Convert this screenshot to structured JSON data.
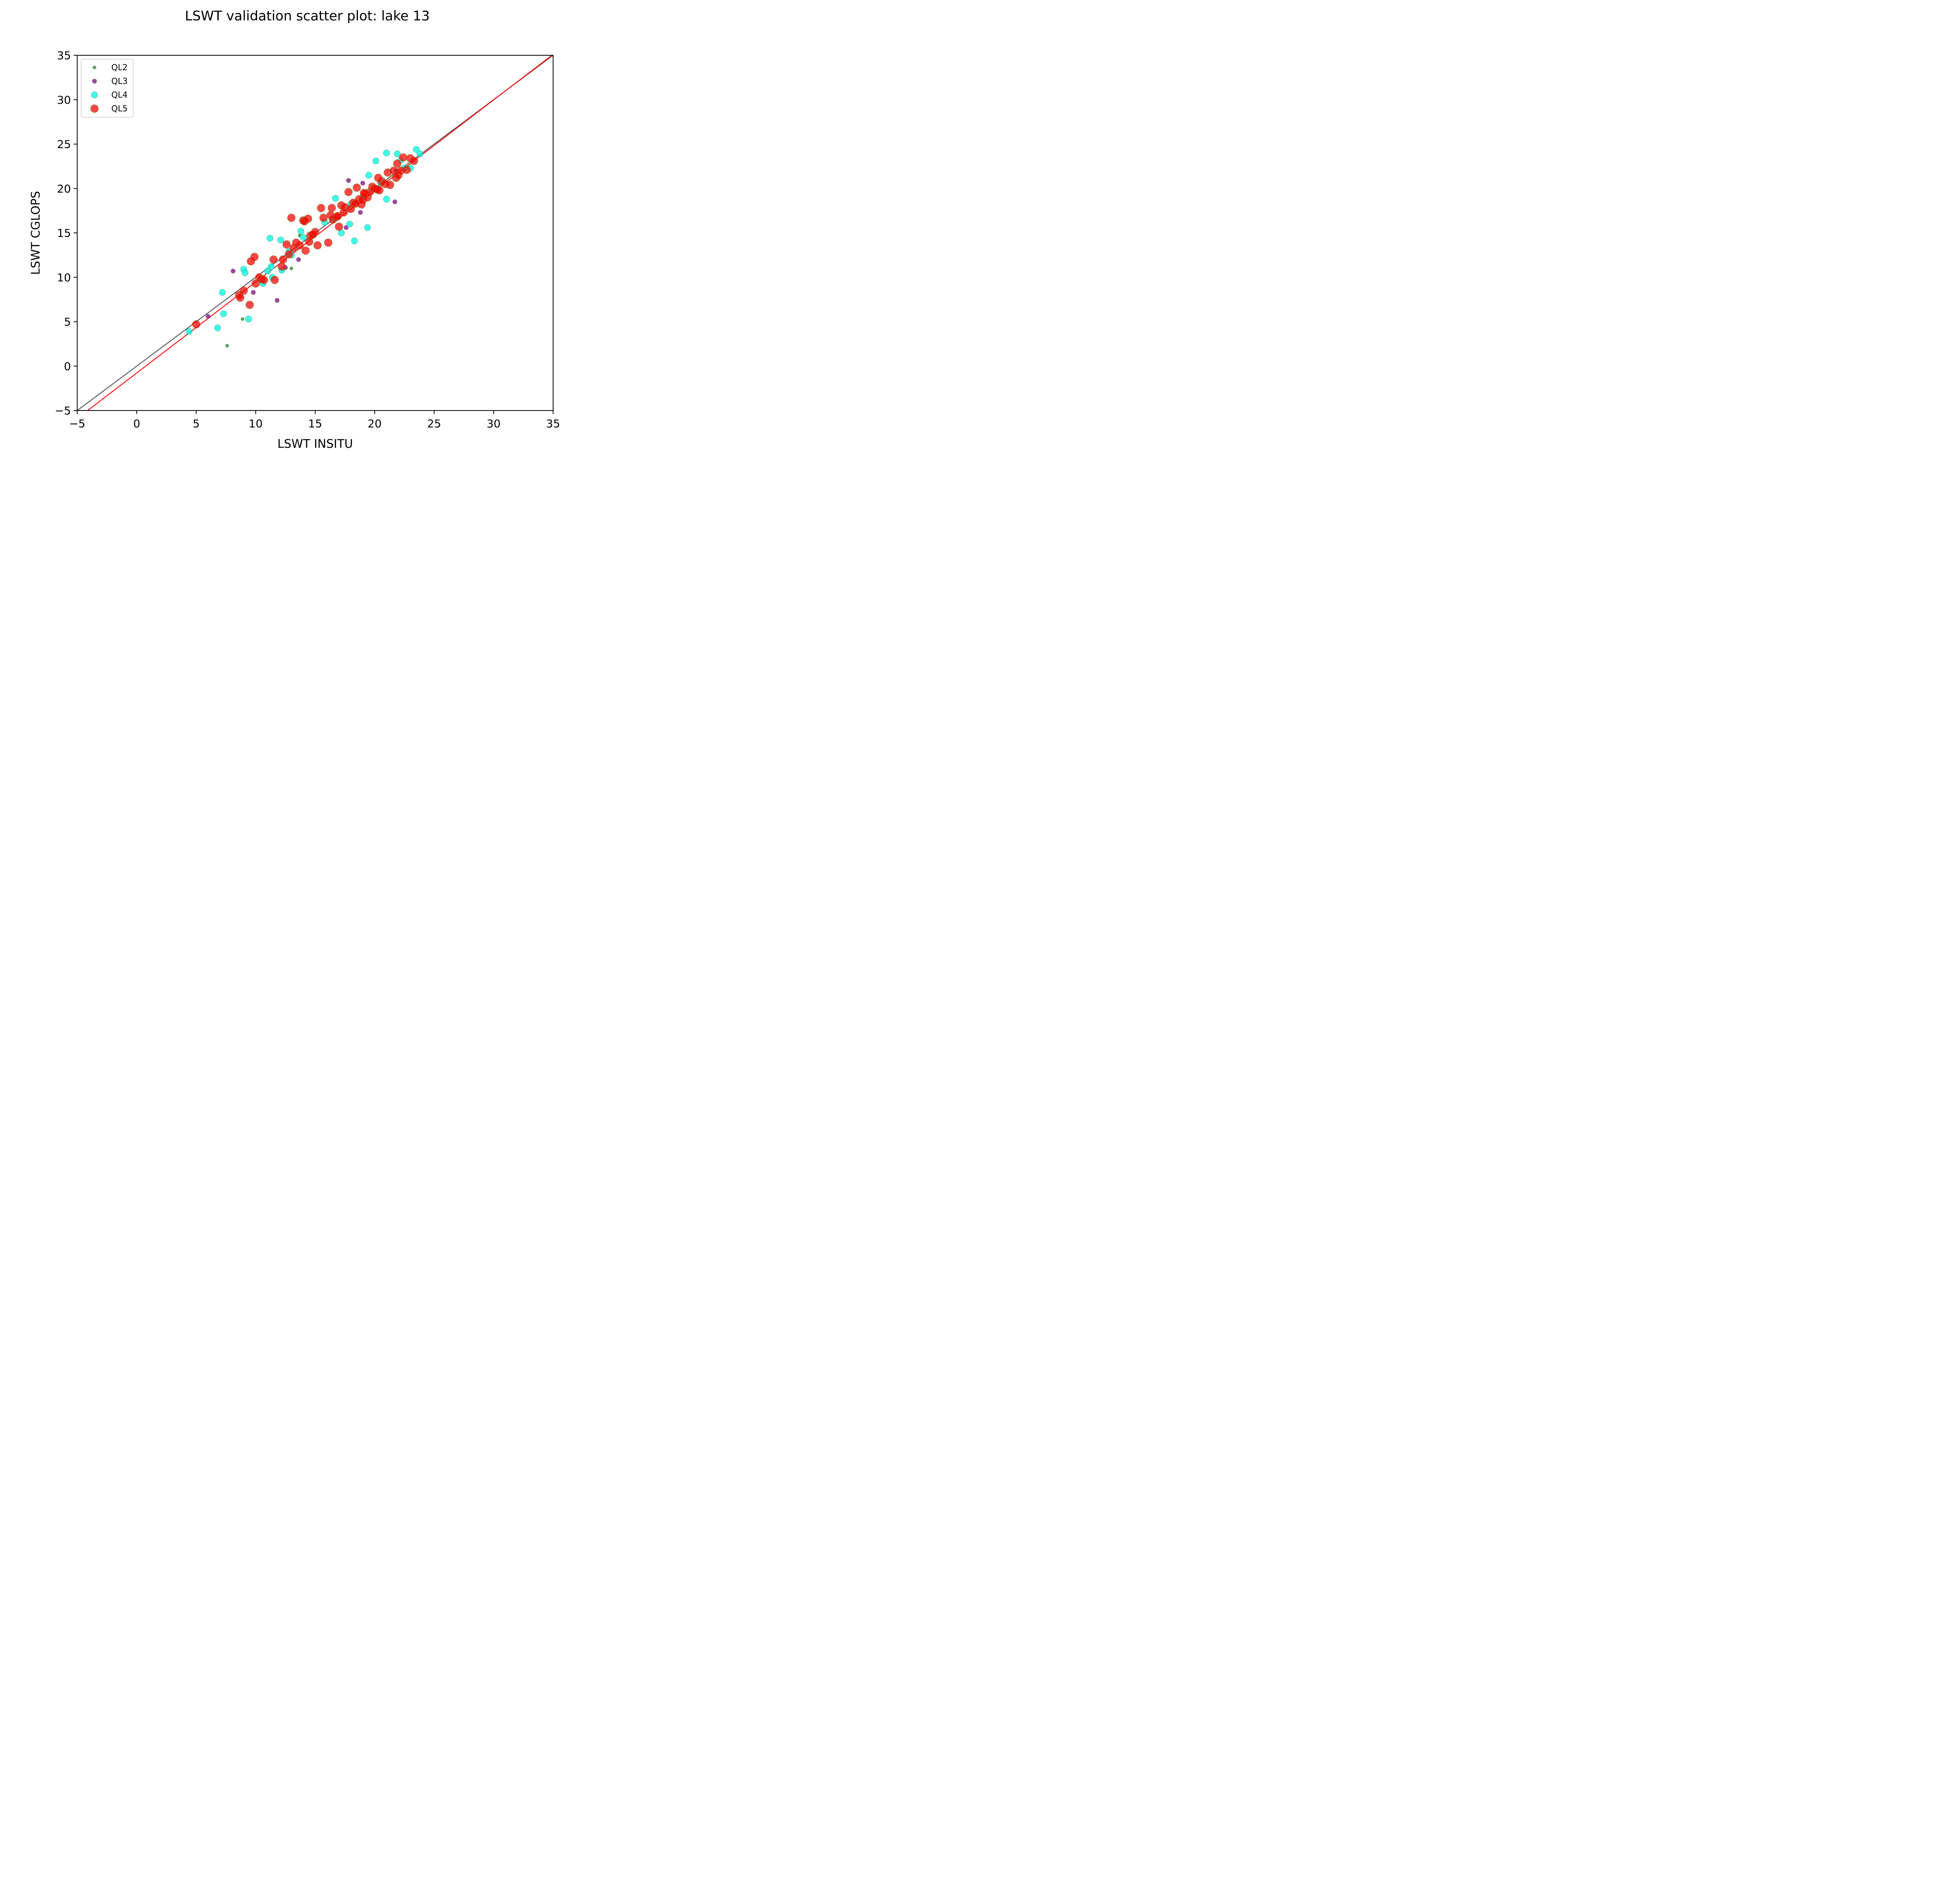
{
  "chart_data": {
    "type": "scatter",
    "title": "LSWT validation scatter plot: lake 13",
    "xlabel": "LSWT INSITU",
    "ylabel": "LSWT CGLOPS",
    "xlim": [
      -5,
      35
    ],
    "ylim": [
      -5,
      35
    ],
    "xticks": [
      -5,
      0,
      5,
      10,
      15,
      20,
      25,
      30,
      35
    ],
    "yticks": [
      -5,
      0,
      5,
      10,
      15,
      20,
      25,
      30,
      35
    ],
    "xtick_labels": [
      "−5",
      "0",
      "5",
      "10",
      "15",
      "20",
      "25",
      "30",
      "35"
    ],
    "ytick_labels": [
      "−5",
      "0",
      "5",
      "10",
      "15",
      "20",
      "25",
      "30",
      "35"
    ],
    "grid": false,
    "legend_position": "top-left",
    "lines": [
      {
        "style": "identity",
        "color": "#5f5a5f",
        "x": [
          -5,
          35
        ],
        "y": [
          -5,
          35
        ]
      },
      {
        "style": "fit",
        "color": "#ff0000",
        "x": [
          -5,
          35
        ],
        "y": [
          -5.9,
          35.1
        ]
      }
    ],
    "series": [
      {
        "name": "QL2",
        "color": "#2e8b2e",
        "size": "small",
        "x": [
          7.6,
          8.9,
          13.0,
          13.7
        ],
        "y": [
          2.3,
          5.3,
          11.0,
          14.7
        ]
      },
      {
        "name": "QL3",
        "color": "#7f1f7f",
        "size": "medium",
        "x": [
          6.0,
          8.1,
          9.8,
          11.8,
          12.5,
          13.6,
          17.6,
          17.8,
          18.8,
          19.0,
          21.7,
          21.8
        ],
        "y": [
          5.6,
          10.7,
          8.3,
          7.4,
          11.1,
          12.0,
          15.6,
          20.9,
          17.3,
          20.6,
          18.5,
          22.0
        ]
      },
      {
        "name": "QL4",
        "color": "#00ffe0",
        "size": "medium-large",
        "x": [
          4.4,
          6.8,
          7.2,
          7.3,
          9.0,
          9.1,
          9.4,
          10.6,
          11.0,
          11.2,
          11.3,
          11.4,
          12.1,
          12.2,
          12.8,
          13.0,
          13.8,
          14.0,
          16.7,
          17.2,
          17.9,
          18.3,
          19.4,
          19.5,
          20.1,
          21.0,
          21.0,
          21.9,
          22.2,
          23.0,
          23.5,
          23.8,
          15.8,
          16.5,
          18.0,
          19.0,
          20.5,
          22.5
        ],
        "y": [
          3.9,
          4.3,
          8.3,
          5.9,
          10.9,
          10.5,
          5.3,
          9.3,
          10.7,
          14.4,
          11.2,
          10.0,
          14.2,
          10.8,
          12.9,
          12.5,
          15.2,
          14.5,
          18.9,
          15.0,
          16.0,
          14.1,
          15.6,
          21.5,
          23.1,
          18.8,
          24.0,
          23.9,
          23.2,
          22.3,
          24.4,
          23.9,
          16.2,
          16.6,
          18.2,
          19.0,
          20.7,
          22.3
        ]
      },
      {
        "name": "QL5",
        "color": "#ff0000",
        "size": "large",
        "x": [
          5.0,
          8.6,
          8.7,
          9.0,
          9.5,
          9.6,
          9.9,
          10.0,
          10.3,
          10.5,
          10.7,
          11.5,
          11.6,
          12.2,
          12.3,
          12.6,
          12.8,
          13.0,
          13.2,
          13.7,
          14.0,
          14.1,
          14.2,
          14.4,
          14.6,
          14.8,
          15.2,
          15.5,
          15.7,
          16.1,
          16.4,
          16.5,
          16.8,
          17.0,
          17.2,
          17.5,
          17.8,
          18.0,
          18.2,
          18.5,
          18.7,
          18.9,
          19.0,
          19.2,
          19.4,
          19.6,
          19.8,
          20.0,
          20.2,
          20.4,
          20.6,
          20.9,
          21.1,
          21.3,
          21.6,
          21.8,
          22.0,
          22.2,
          22.4,
          22.7,
          23.0,
          23.3,
          16.3,
          16.9,
          17.4,
          18.4,
          19.1,
          20.3,
          21.9,
          14.5,
          15.0,
          13.4
        ],
        "y": [
          4.7,
          8.0,
          7.7,
          8.5,
          6.9,
          11.8,
          12.3,
          9.3,
          10.0,
          9.8,
          9.7,
          12.0,
          9.7,
          11.2,
          12.0,
          13.7,
          12.6,
          16.7,
          13.3,
          13.6,
          16.4,
          16.3,
          13.0,
          16.6,
          14.7,
          14.8,
          13.6,
          17.8,
          16.7,
          13.9,
          17.8,
          16.5,
          16.8,
          15.7,
          18.1,
          17.9,
          19.6,
          17.7,
          18.4,
          20.1,
          18.8,
          18.2,
          18.7,
          19.4,
          19.0,
          19.6,
          20.2,
          20.0,
          19.9,
          19.8,
          20.8,
          20.5,
          21.8,
          20.4,
          22.0,
          21.2,
          21.5,
          22.0,
          23.5,
          22.1,
          23.4,
          23.1,
          17.0,
          16.9,
          17.3,
          18.3,
          19.5,
          21.2,
          22.8,
          14.0,
          15.1,
          13.9
        ]
      }
    ]
  }
}
